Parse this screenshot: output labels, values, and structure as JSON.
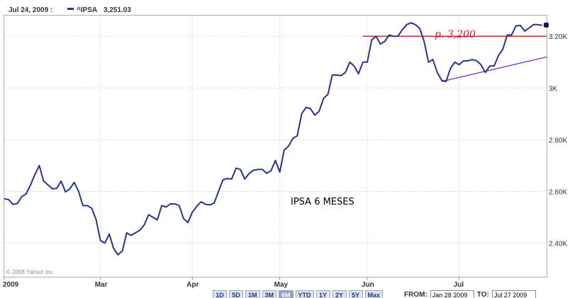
{
  "header": {
    "date": "Jul 24, 2009 :",
    "symbol": "^IPSA",
    "value": "3,251.03"
  },
  "copyright": "© 2008 Yahoo! Inc.",
  "annotations": {
    "price_label": "p. 3,200",
    "chart_caption": "IPSA 6 MESES"
  },
  "controls": {
    "ranges": [
      "1D",
      "5D",
      "1M",
      "3M",
      "6M",
      "YTD",
      "1Y",
      "2Y",
      "5Y",
      "Max"
    ],
    "active_range": "6M",
    "from_label": "FROM:",
    "from_value": "Jan 28 2009",
    "to_label": "TO:",
    "to_value": "Jul 27 2009"
  },
  "colors": {
    "series": "#26358c",
    "resistance_line": "#cc1a1a",
    "support_line": "#8a2fc2",
    "grid": "#c8c8c8",
    "end_marker": "#0b1a5c"
  },
  "chart_data": {
    "type": "line",
    "title": "",
    "xlabel": "",
    "ylabel": "",
    "x_tick_labels": [
      "2009",
      "Mar",
      "Apr",
      "May",
      "Jun",
      "Jul"
    ],
    "y_tick_labels": [
      "2.40K",
      "2.60K",
      "2.80K",
      "3K",
      "3.20K"
    ],
    "y_tick_values": [
      2400,
      2600,
      2800,
      3000,
      3200
    ],
    "ylim": [
      2270,
      3280
    ],
    "grid": true,
    "x_tick_positions": [
      0,
      22,
      43,
      63,
      83,
      104
    ],
    "x_range": [
      0,
      124
    ],
    "series": [
      {
        "name": "^IPSA",
        "x": [
          0,
          1,
          2,
          3,
          4,
          5,
          6,
          7,
          8,
          9,
          10,
          11,
          12,
          13,
          14,
          15,
          16,
          17,
          18,
          19,
          20,
          21,
          22,
          23,
          24,
          25,
          26,
          27,
          28,
          29,
          30,
          31,
          32,
          33,
          34,
          35,
          36,
          37,
          38,
          39,
          40,
          41,
          42,
          43,
          44,
          45,
          46,
          47,
          48,
          49,
          50,
          51,
          52,
          53,
          54,
          55,
          56,
          57,
          58,
          59,
          60,
          61,
          62,
          63,
          64,
          65,
          66,
          67,
          68,
          69,
          70,
          71,
          72,
          73,
          74,
          75,
          76,
          77,
          78,
          79,
          80,
          81,
          82,
          83,
          84,
          85,
          86,
          87,
          88,
          89,
          90,
          91,
          92,
          93,
          94,
          95,
          96,
          97,
          98,
          99,
          100,
          101,
          102,
          103,
          104,
          105,
          106,
          107,
          108,
          109,
          110,
          111,
          112,
          113,
          114,
          115,
          116,
          117,
          118,
          119,
          120,
          121,
          122,
          123
        ],
        "values": [
          2572,
          2568,
          2550,
          2553,
          2580,
          2590,
          2625,
          2665,
          2700,
          2640,
          2625,
          2610,
          2612,
          2640,
          2598,
          2610,
          2635,
          2600,
          2545,
          2545,
          2535,
          2490,
          2410,
          2400,
          2435,
          2380,
          2355,
          2370,
          2440,
          2430,
          2440,
          2450,
          2470,
          2510,
          2500,
          2490,
          2545,
          2540,
          2552,
          2552,
          2545,
          2495,
          2480,
          2520,
          2542,
          2560,
          2550,
          2548,
          2555,
          2600,
          2645,
          2650,
          2648,
          2690,
          2685,
          2648,
          2670,
          2682,
          2685,
          2685,
          2670,
          2680,
          2720,
          2675,
          2760,
          2775,
          2805,
          2815,
          2900,
          2925,
          2920,
          2895,
          2910,
          2960,
          2975,
          3050,
          3050,
          3048,
          3060,
          3100,
          3085,
          3055,
          3100,
          3100,
          3185,
          3200,
          3170,
          3180,
          3205,
          3200,
          3200,
          3225,
          3245,
          3252,
          3245,
          3230,
          3180,
          3100,
          3110,
          3060,
          3030,
          3025,
          3075,
          3100,
          3090,
          3105,
          3105,
          3110,
          3105,
          3090,
          3060,
          3085,
          3085,
          3125,
          3150,
          3205,
          3205,
          3240,
          3242,
          3220,
          3232,
          3245,
          3245,
          3242
        ]
      }
    ],
    "end_point": {
      "x": 124,
      "value": 3242
    },
    "reference_lines": [
      {
        "kind": "horizontal",
        "value": 3200,
        "x_start": 82,
        "x_end": 124
      },
      {
        "kind": "trend",
        "x_start": 100,
        "value_start": 3025,
        "x_end": 124,
        "value_end": 3120
      }
    ]
  }
}
